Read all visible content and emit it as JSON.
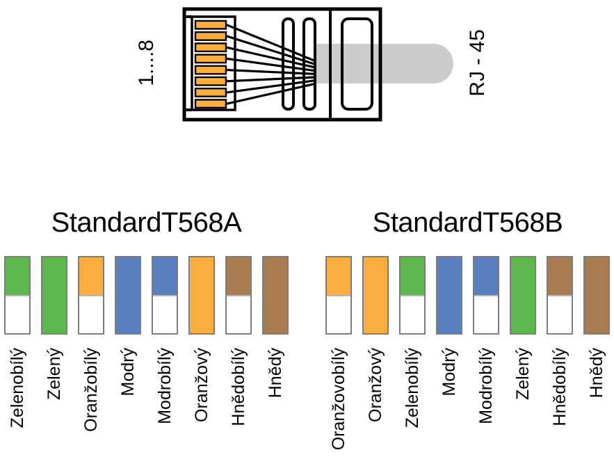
{
  "connector": {
    "pins_label": "1....8",
    "name_label": "RJ - 45",
    "pin_count": 8,
    "pin_color": "#FBAE3F",
    "cable_color": "#CBCCCE",
    "outline_color": "#000000"
  },
  "palette": {
    "green": "#5CB84C",
    "orange": "#FBAE3F",
    "blue": "#5B80BF",
    "brown": "#A87C50",
    "bar_border": "#7d7d7d"
  },
  "standards": [
    {
      "title": "StandardT568A",
      "wires": [
        {
          "label": "Zelenobílý",
          "color": "#5CB84C",
          "striped": true
        },
        {
          "label": "Zelený",
          "color": "#5CB84C",
          "striped": false
        },
        {
          "label": "Oranžobílý",
          "color": "#FBAE3F",
          "striped": true
        },
        {
          "label": "Modrý",
          "color": "#5B80BF",
          "striped": false
        },
        {
          "label": "Modrobílý",
          "color": "#5B80BF",
          "striped": true
        },
        {
          "label": "Oranžový",
          "color": "#FBAE3F",
          "striped": false
        },
        {
          "label": "Hnědobílý",
          "color": "#A87C50",
          "striped": true
        },
        {
          "label": "Hnědý",
          "color": "#A87C50",
          "striped": false
        }
      ]
    },
    {
      "title": "StandardT568B",
      "wires": [
        {
          "label": "Oranžovobílý",
          "color": "#FBAE3F",
          "striped": true
        },
        {
          "label": "Oranžový",
          "color": "#FBAE3F",
          "striped": false
        },
        {
          "label": "Zelenobílý",
          "color": "#5CB84C",
          "striped": true
        },
        {
          "label": "Modrý",
          "color": "#5B80BF",
          "striped": false
        },
        {
          "label": "Modrobílý",
          "color": "#5B80BF",
          "striped": true
        },
        {
          "label": "Zelený",
          "color": "#5CB84C",
          "striped": false
        },
        {
          "label": "Hnědobílý",
          "color": "#A87C50",
          "striped": true
        },
        {
          "label": "Hnědý",
          "color": "#A87C50",
          "striped": false
        }
      ]
    }
  ]
}
